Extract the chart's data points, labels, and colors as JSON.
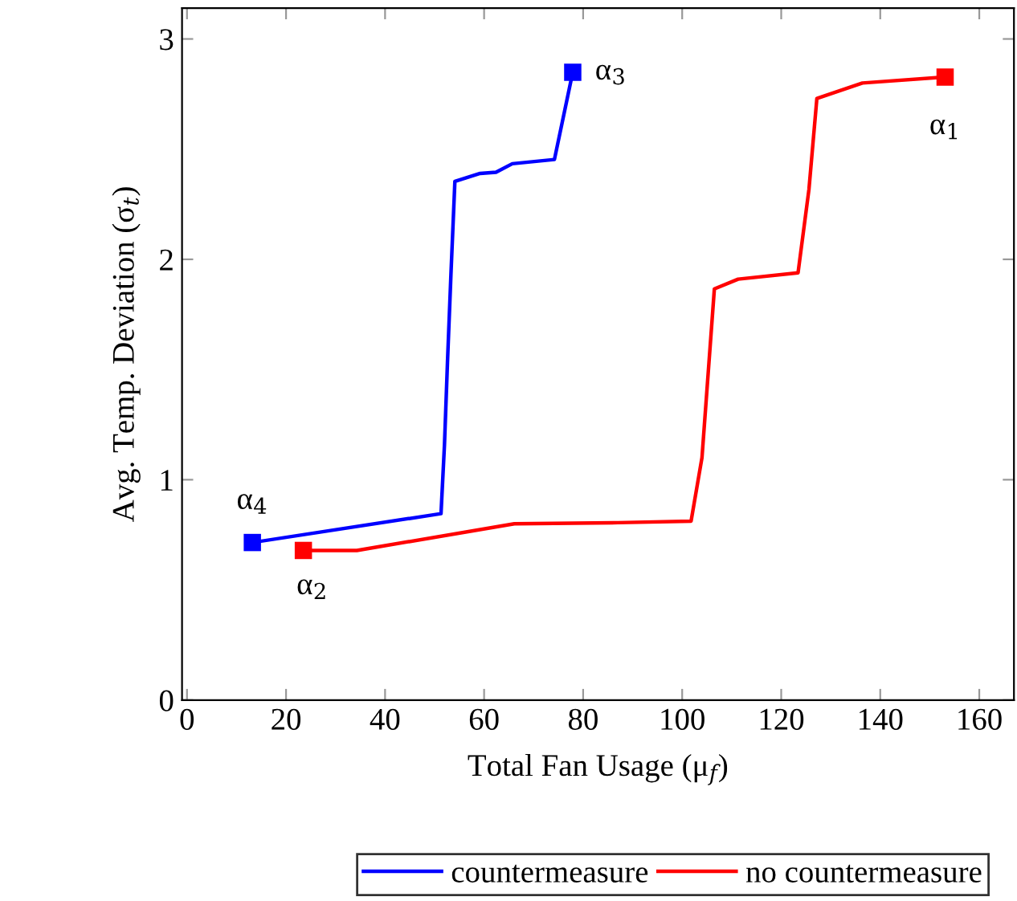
{
  "chart_data": {
    "type": "line",
    "xlabel": "Total Fan Usage (μ$_{f}$)",
    "ylabel": "Avg. Temp. Deviation (σ$_{t}$)",
    "xlim": [
      -1,
      167
    ],
    "ylim": [
      0,
      3.14
    ],
    "xticks": [
      0,
      20,
      40,
      60,
      80,
      100,
      120,
      140,
      160
    ],
    "yticks": [
      0,
      1,
      2,
      3
    ],
    "grid": false,
    "legend": "bottom",
    "line_style": "solid",
    "series": [
      {
        "name": "countermeasure",
        "color": "#0000ff",
        "marker": "none",
        "x": [
          13.2,
          51.3,
          52.0,
          52.6,
          53.3,
          54.1,
          59.2,
          62.4,
          65.7,
          74.2,
          77.9
        ],
        "values": [
          0.715,
          0.846,
          1.16,
          1.53,
          1.93,
          2.354,
          2.39,
          2.395,
          2.434,
          2.453,
          2.849
        ]
      },
      {
        "name": "no countermeasure",
        "color": "#ff0000",
        "marker": "none",
        "x": [
          23.5,
          34.3,
          66.1,
          87.0,
          101.8,
          104.0,
          106.5,
          111.3,
          123.4,
          125.6,
          127.2,
          136.4,
          153.1
        ],
        "values": [
          0.679,
          0.679,
          0.8,
          0.805,
          0.812,
          1.1,
          1.866,
          1.91,
          1.939,
          2.317,
          2.73,
          2.8,
          2.827
        ]
      },
      {
        "color": "#0000ff",
        "type": "scatter",
        "marker": "square",
        "x": [
          13.2,
          77.9
        ],
        "values": [
          0.715,
          2.849
        ]
      },
      {
        "color": "#ff0000",
        "type": "scatter",
        "marker": "square",
        "x": [
          23.5,
          153.1
        ],
        "values": [
          0.679,
          2.827
        ]
      }
    ],
    "annotations": [
      {
        "text": "α$_{1}$",
        "x": 153.1,
        "y": 2.827
      },
      {
        "text": "α$_{2}$",
        "x": 23.5,
        "y": 0.679
      },
      {
        "text": "α$_{3}$",
        "x": 77.9,
        "y": 2.849
      },
      {
        "text": "α$_{4}$",
        "x": 13.2,
        "y": 0.715
      }
    ]
  }
}
